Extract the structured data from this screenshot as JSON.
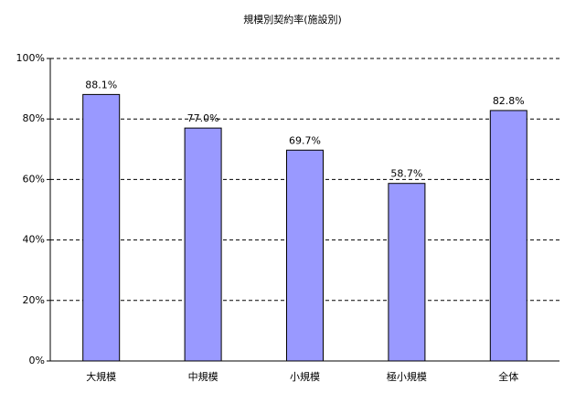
{
  "chart_data": {
    "type": "bar",
    "title": "規模別契約率(施設別)",
    "categories": [
      "大規模",
      "中規模",
      "小規模",
      "極小規模",
      "全体"
    ],
    "values": [
      88.1,
      77.0,
      69.7,
      58.7,
      82.8
    ],
    "value_labels": [
      "88.1%",
      "77.0%",
      "69.7%",
      "58.7%",
      "82.8%"
    ],
    "color": "#9999ff",
    "ylim": [
      0,
      100
    ],
    "yticks": [
      {
        "value": 0,
        "label": "0%"
      },
      {
        "value": 20,
        "label": "20%"
      },
      {
        "value": 40,
        "label": "40%"
      },
      {
        "value": 60,
        "label": "60%"
      },
      {
        "value": 80,
        "label": "80%"
      },
      {
        "value": 100,
        "label": "100%"
      }
    ],
    "grid": true
  }
}
